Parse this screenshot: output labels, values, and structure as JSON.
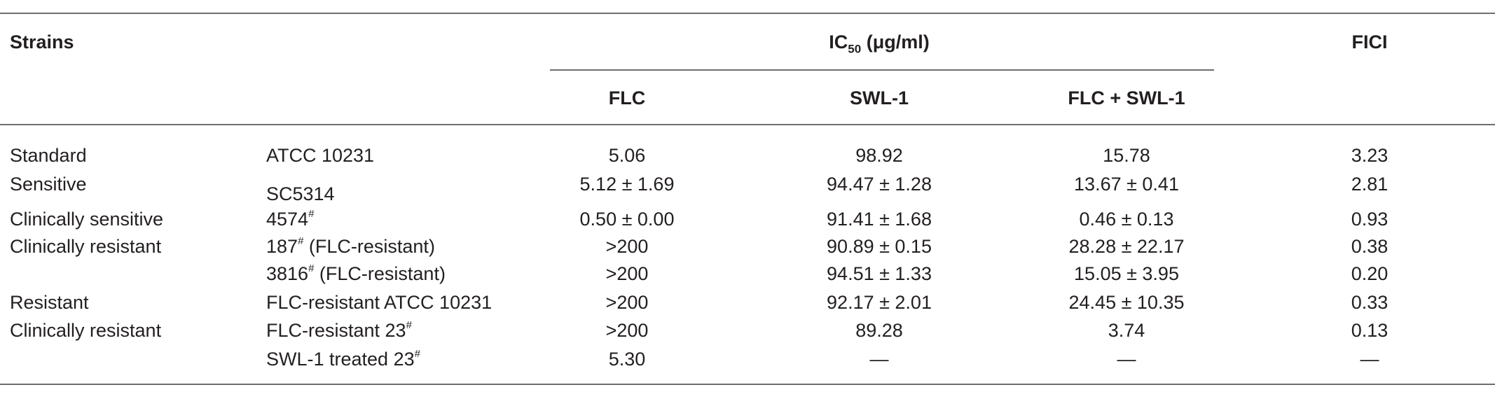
{
  "header": {
    "strains": "Strains",
    "ic50_prefix": "IC",
    "ic50_sub": "50",
    "ic50_unit": " (μg/ml)",
    "fici": "FICI",
    "cols": {
      "flc": "FLC",
      "swl1": "SWL-1",
      "combo": "FLC + SWL-1"
    }
  },
  "rows": [
    {
      "category": "Standard",
      "strain": "ATCC 10231",
      "strain_sup": "",
      "strain_suffix": "",
      "flc": "5.06",
      "swl1": "98.92",
      "combo": "15.78",
      "fici": "3.23"
    },
    {
      "category": "Sensitive",
      "strain": "SC5314",
      "strain_sup": "",
      "strain_suffix": "",
      "flc": "5.12 ± 1.69",
      "swl1": "94.47 ± 1.28",
      "combo": "13.67 ± 0.41",
      "fici": "2.81"
    },
    {
      "category": "Clinically sensitive",
      "strain": "4574",
      "strain_sup": "#",
      "strain_suffix": "",
      "flc": "0.50 ± 0.00",
      "swl1": "91.41 ± 1.68",
      "combo": "0.46 ± 0.13",
      "fici": "0.93"
    },
    {
      "category": "Clinically resistant",
      "strain": "187",
      "strain_sup": "#",
      "strain_suffix": " (FLC-resistant)",
      "flc": ">200",
      "swl1": "90.89 ± 0.15",
      "combo": "28.28 ± 22.17",
      "fici": "0.38"
    },
    {
      "category": "",
      "strain": "3816",
      "strain_sup": "#",
      "strain_suffix": " (FLC-resistant)",
      "flc": ">200",
      "swl1": "94.51 ± 1.33",
      "combo": "15.05 ± 3.95",
      "fici": "0.20"
    },
    {
      "category": "Resistant",
      "strain": "FLC-resistant ATCC 10231",
      "strain_sup": "",
      "strain_suffix": "",
      "flc": ">200",
      "swl1": "92.17 ± 2.01",
      "combo": "24.45 ± 10.35",
      "fici": "0.33"
    },
    {
      "category": "Clinically resistant",
      "strain": "FLC-resistant 23",
      "strain_sup": "#",
      "strain_suffix": "",
      "flc": ">200",
      "swl1": "89.28",
      "combo": "3.74",
      "fici": "0.13"
    },
    {
      "category": "",
      "strain": "SWL-1 treated 23",
      "strain_sup": "#",
      "strain_suffix": "",
      "flc": "5.30",
      "swl1": "—",
      "combo": "—",
      "fici": "—"
    }
  ]
}
